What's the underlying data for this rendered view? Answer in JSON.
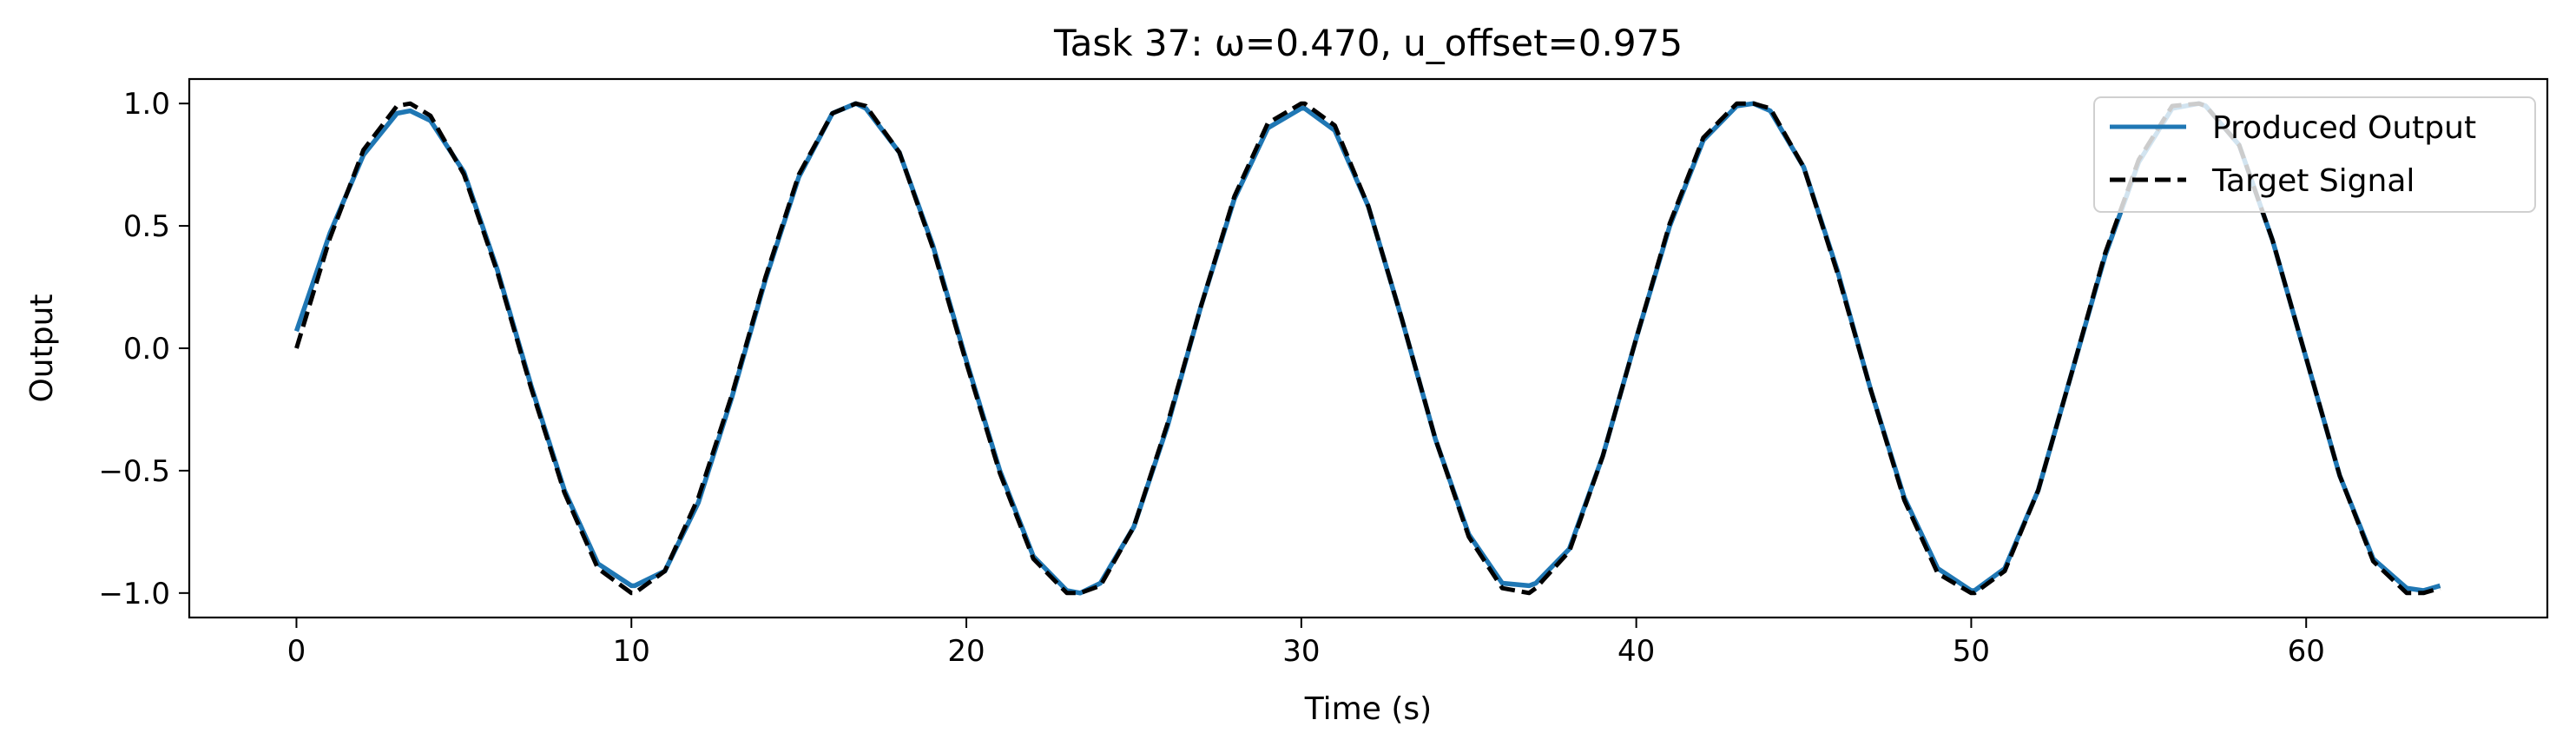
{
  "chart_data": {
    "type": "line",
    "title": "Task 37: ω=0.470, u_offset=0.975",
    "xlabel": "Time (s)",
    "ylabel": "Output",
    "xlim": [
      -3.2,
      67.2
    ],
    "ylim": [
      -1.1,
      1.1
    ],
    "xticks": [
      0,
      10,
      20,
      30,
      40,
      50,
      60
    ],
    "xtick_labels": [
      "0",
      "10",
      "20",
      "30",
      "40",
      "50",
      "60"
    ],
    "yticks": [
      -1.0,
      -0.5,
      0.0,
      0.5,
      1.0
    ],
    "ytick_labels": [
      "−1.0",
      "−0.5",
      "0.0",
      "0.5",
      "1.0"
    ],
    "grid": false,
    "legend_position": "upper-right",
    "series": [
      {
        "name": "Produced Output",
        "color": "#1f77b4",
        "style": "solid",
        "x": [
          0,
          1,
          2,
          3,
          3.4,
          4,
          5,
          6,
          7,
          8,
          9,
          10,
          10.1,
          11,
          12,
          13,
          14,
          15,
          16,
          16.7,
          17,
          18,
          19,
          20,
          21,
          22,
          23,
          23.4,
          24,
          25,
          26,
          27,
          28,
          29,
          30,
          30.1,
          31,
          32,
          33,
          34,
          35,
          36,
          36.8,
          37,
          38,
          39,
          40,
          41,
          42,
          43,
          43.5,
          44,
          45,
          46,
          47,
          48,
          49,
          50,
          50.1,
          51,
          52,
          53,
          54,
          55,
          56,
          56.8,
          57,
          58,
          59,
          60,
          61,
          62,
          63,
          63.5,
          64
        ],
        "y": [
          0.07,
          0.47,
          0.79,
          0.96,
          0.97,
          0.93,
          0.72,
          0.32,
          -0.15,
          -0.58,
          -0.88,
          -0.97,
          -0.97,
          -0.91,
          -0.63,
          -0.2,
          0.28,
          0.7,
          0.96,
          1.0,
          0.98,
          0.8,
          0.42,
          -0.05,
          -0.5,
          -0.85,
          -0.99,
          -1.0,
          -0.96,
          -0.73,
          -0.32,
          0.17,
          0.61,
          0.9,
          0.98,
          0.98,
          0.89,
          0.58,
          0.12,
          -0.37,
          -0.76,
          -0.96,
          -0.97,
          -0.96,
          -0.82,
          -0.44,
          0.04,
          0.5,
          0.85,
          0.99,
          1.0,
          0.97,
          0.74,
          0.32,
          -0.17,
          -0.61,
          -0.9,
          -0.99,
          -0.99,
          -0.9,
          -0.58,
          -0.1,
          0.38,
          0.76,
          0.98,
          1.0,
          0.99,
          0.83,
          0.44,
          -0.04,
          -0.52,
          -0.86,
          -0.98,
          -0.99,
          -0.97
        ]
      },
      {
        "name": "Target Signal",
        "color": "#000000",
        "style": "dashed",
        "x": [
          0,
          1,
          2,
          3,
          3.4,
          4,
          5,
          6,
          7,
          8,
          9,
          10,
          10.1,
          11,
          12,
          13,
          14,
          15,
          16,
          16.7,
          17,
          18,
          19,
          20,
          21,
          22,
          23,
          23.4,
          24,
          25,
          26,
          27,
          28,
          29,
          30,
          30.1,
          31,
          32,
          33,
          34,
          35,
          36,
          36.8,
          37,
          38,
          39,
          40,
          41,
          42,
          43,
          43.5,
          44,
          45,
          46,
          47,
          48,
          49,
          50,
          50.1,
          51,
          52,
          53,
          54,
          55,
          56,
          56.8,
          57,
          58,
          59,
          60,
          61,
          62,
          63,
          63.5,
          64
        ],
        "y": [
          0.0,
          0.45,
          0.81,
          0.99,
          1.0,
          0.95,
          0.71,
          0.31,
          -0.16,
          -0.59,
          -0.9,
          -1.0,
          -1.0,
          -0.91,
          -0.61,
          -0.19,
          0.29,
          0.71,
          0.96,
          1.0,
          0.99,
          0.8,
          0.41,
          -0.06,
          -0.51,
          -0.86,
          -1.0,
          -1.0,
          -0.97,
          -0.73,
          -0.31,
          0.17,
          0.62,
          0.92,
          1.0,
          1.0,
          0.91,
          0.58,
          0.12,
          -0.37,
          -0.77,
          -0.98,
          -1.0,
          -0.98,
          -0.83,
          -0.44,
          0.04,
          0.51,
          0.86,
          1.0,
          1.0,
          0.98,
          0.74,
          0.31,
          -0.17,
          -0.62,
          -0.92,
          -1.0,
          -1.0,
          -0.91,
          -0.58,
          -0.1,
          0.39,
          0.77,
          0.99,
          1.0,
          0.99,
          0.83,
          0.44,
          -0.04,
          -0.52,
          -0.87,
          -1.0,
          -1.0,
          -0.98
        ]
      }
    ]
  }
}
